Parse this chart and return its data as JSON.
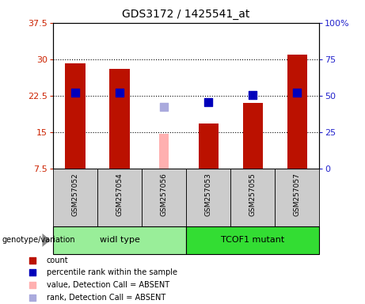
{
  "title": "GDS3172 / 1425541_at",
  "samples": [
    "GSM257052",
    "GSM257054",
    "GSM257056",
    "GSM257053",
    "GSM257055",
    "GSM257057"
  ],
  "count_values": [
    29.2,
    28.1,
    null,
    16.8,
    21.0,
    31.0
  ],
  "count_absent": [
    null,
    null,
    14.7,
    null,
    null,
    null
  ],
  "rank_values": [
    23.1,
    23.1,
    null,
    21.2,
    22.6,
    23.1
  ],
  "rank_absent": [
    null,
    null,
    20.2,
    null,
    null,
    null
  ],
  "ylim_left": [
    7.5,
    37.5
  ],
  "ylim_right": [
    0,
    100
  ],
  "yticks_left": [
    7.5,
    15.0,
    22.5,
    30.0,
    37.5
  ],
  "yticks_right": [
    0,
    25,
    50,
    75,
    100
  ],
  "ytick_labels_left": [
    "7.5",
    "15",
    "22.5",
    "30",
    "37.5"
  ],
  "ytick_labels_right": [
    "0",
    "25",
    "50",
    "75",
    "100%"
  ],
  "bar_color": "#bb1100",
  "bar_absent_color": "#ffb0b0",
  "rank_color": "#0000bb",
  "rank_absent_color": "#aaaadd",
  "bar_width": 0.45,
  "rank_marker_size": 50,
  "left_color": "#cc2200",
  "right_color": "#2222cc",
  "background_label": "#cccccc",
  "background_group_wt": "#99ee99",
  "background_group_mut": "#33dd33",
  "genotype_label": "genotype/variation",
  "wt_label": "widl type",
  "mut_label": "TCOF1 mutant",
  "legend_items": [
    {
      "color": "#bb1100",
      "label": "count"
    },
    {
      "color": "#0000bb",
      "label": "percentile rank within the sample"
    },
    {
      "color": "#ffb0b0",
      "label": "value, Detection Call = ABSENT"
    },
    {
      "color": "#aaaadd",
      "label": "rank, Detection Call = ABSENT"
    }
  ]
}
